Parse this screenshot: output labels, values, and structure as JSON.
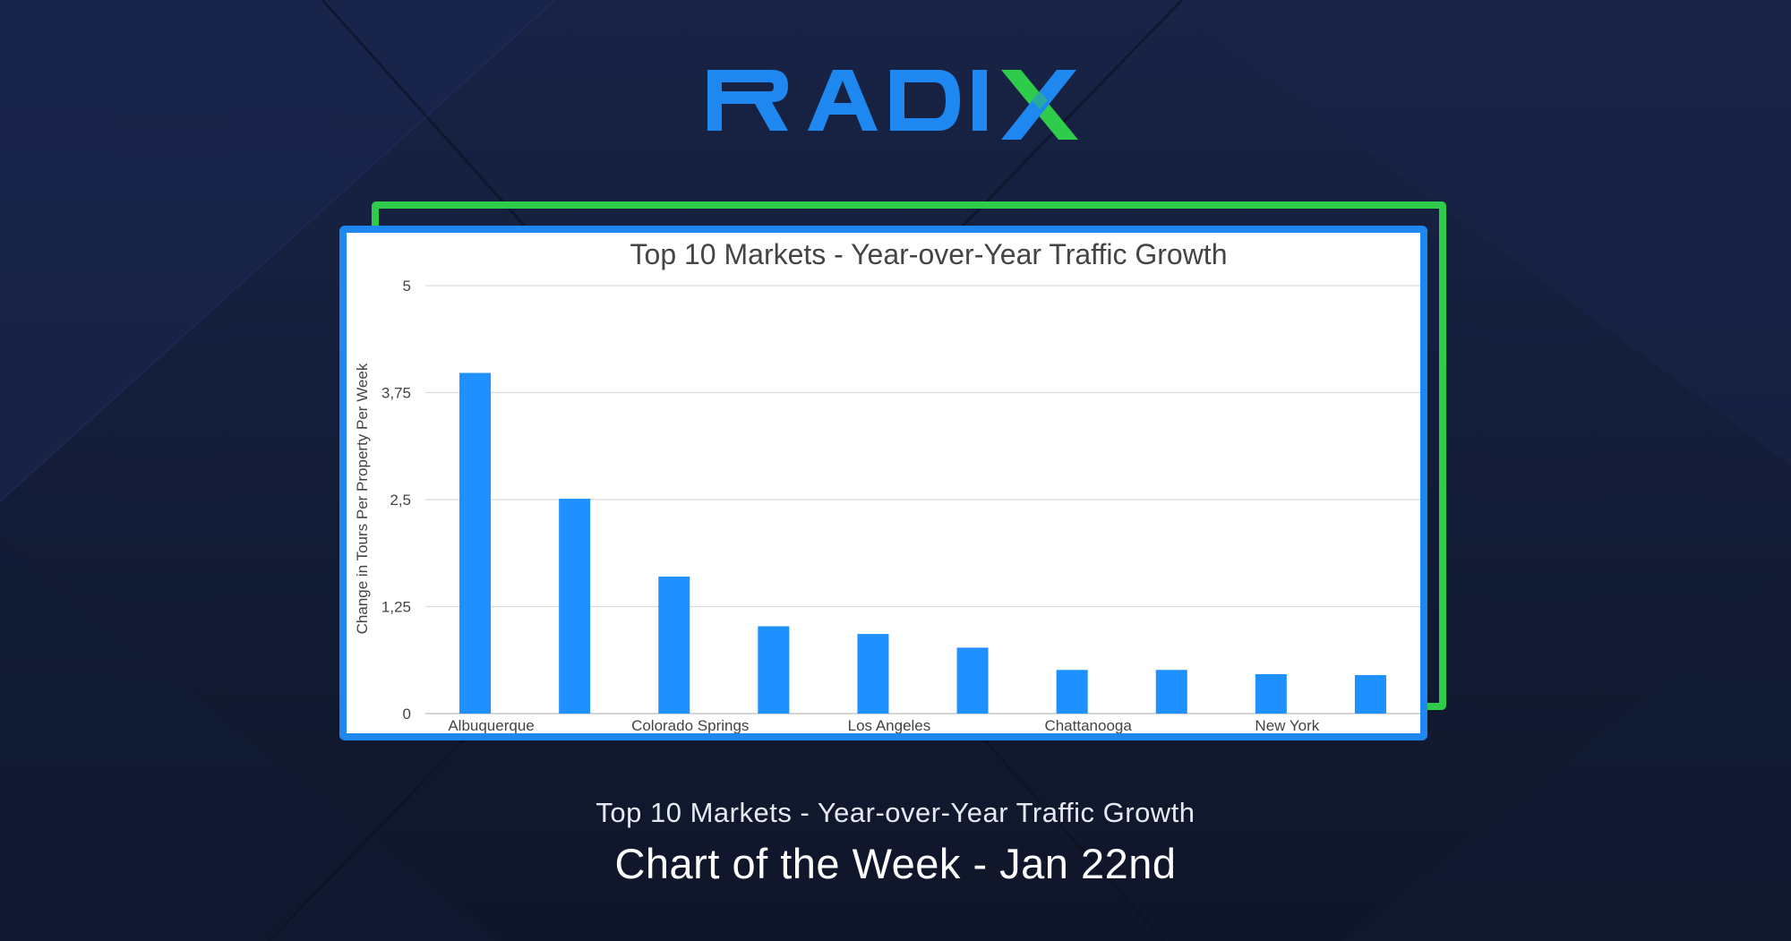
{
  "brand": {
    "logo_text": "RADIX",
    "colors": {
      "blue": "#1e88f0",
      "green": "#2fcc4b",
      "background": "#141d38"
    }
  },
  "chart_data": {
    "type": "bar",
    "title": "Top 10 Markets - Year-over-Year Traffic Growth",
    "ylabel": "Change in Tours Per Property Per Week",
    "xlabel": "",
    "ylim": [
      0,
      5
    ],
    "yticks": [
      "0",
      "1,25",
      "2,5",
      "3,75",
      "5"
    ],
    "grid": true,
    "bar_color": "#1e90ff",
    "categories": [
      "Albuquerque",
      "",
      "Colorado Springs",
      "",
      "Los Angeles",
      "",
      "Chattanooga",
      "",
      "New York",
      ""
    ],
    "values": [
      3.98,
      2.51,
      1.6,
      1.02,
      0.93,
      0.77,
      0.51,
      0.51,
      0.46,
      0.45
    ]
  },
  "caption": {
    "subtitle": "Top 10 Markets - Year-over-Year Traffic Growth",
    "title": "Chart of the Week - Jan 22nd"
  }
}
